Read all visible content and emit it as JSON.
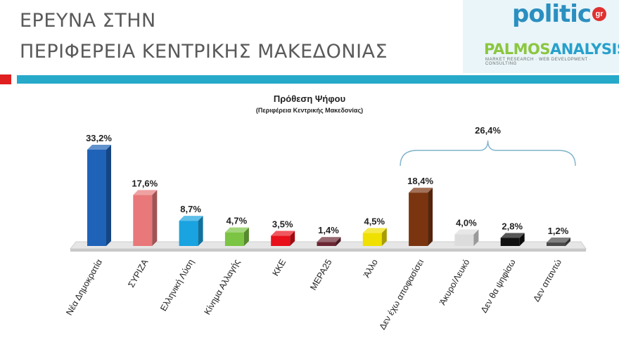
{
  "header": {
    "title_line1": "ΕΡΕΥΝΑ ΣΤΗΝ",
    "title_line2": "ΠΕΡΙΦΕΡΕΙΑ ΚΕΝΤΡΙΚΗΣ ΜΑΚΕΔΟΝΙΑΣ"
  },
  "logos": {
    "politic": "politic",
    "politic_suffix": "gr",
    "palmos_a": "PALMOS",
    "palmos_b": "ANALYSIS",
    "palmos_tagline": "MARKET RESEARCH · WEB DEVELOPMENT · CONSULTING"
  },
  "colors": {
    "header_bar": "#27a9c9",
    "accent_square": "#e02020"
  },
  "chart_data": {
    "type": "bar",
    "title": "Πρόθεση Ψήφου",
    "subtitle": "(Περιφέρεια Κεντρικής Μακεδονίας)",
    "categories": [
      "Νέα Δημοκρατία",
      "ΣΥΡΙΖΑ",
      "Ελληνική Λύση",
      "Κίνημα Αλλαγής",
      "ΚΚΕ",
      "ΜΕΡΑ25",
      "Άλλο",
      "Δεν έχω αποφασίσει",
      "Άκυρο/Λευκό",
      "Δεν θα ψηφίσω",
      "Δεν απαντώ"
    ],
    "values": [
      33.2,
      17.6,
      8.7,
      4.7,
      3.5,
      1.4,
      4.5,
      18.4,
      4.0,
      2.8,
      1.2
    ],
    "value_labels": [
      "33,2%",
      "17,6%",
      "8,7%",
      "4,7%",
      "3,5%",
      "1,4%",
      "4,5%",
      "18,4%",
      "4,0%",
      "2,8%",
      "1,2%"
    ],
    "colors": [
      "#1f63b8",
      "#e8787a",
      "#19a3e0",
      "#7cc443",
      "#e8101a",
      "#6a2733",
      "#f0e000",
      "#7a3410",
      "#dcdcdc",
      "#111111",
      "#4a4a4a"
    ],
    "bracket": {
      "label": "26,4%",
      "from_index": 7,
      "to_index": 10
    },
    "ylim": [
      0,
      35
    ],
    "grid": false,
    "xlabel": "",
    "ylabel": ""
  }
}
